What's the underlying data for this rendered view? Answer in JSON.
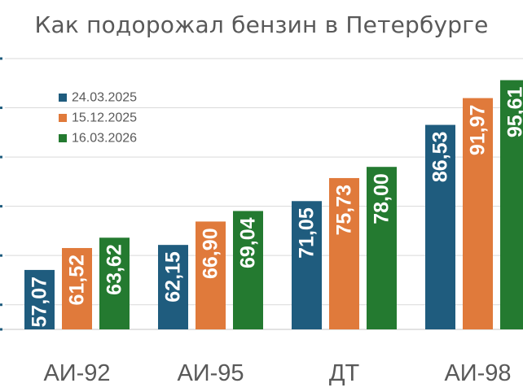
{
  "chart_data": {
    "type": "bar",
    "title": "Как подорожал бензин в Петербурге",
    "categories": [
      "АИ-92",
      "АИ-95",
      "ДТ",
      "АИ-98"
    ],
    "series": [
      {
        "name": "24.03.2025",
        "color": "#1f5c7e",
        "values": [
          57.07,
          62.15,
          71.05,
          86.53
        ],
        "labels": [
          "57,07",
          "62,15",
          "71,05",
          "86,53"
        ]
      },
      {
        "name": "15.12.2025",
        "color": "#e07a3b",
        "values": [
          61.52,
          66.9,
          75.73,
          91.97
        ],
        "labels": [
          "61,52",
          "66,90",
          "75,73",
          "91,97"
        ]
      },
      {
        "name": "16.03.2026",
        "color": "#247a30",
        "values": [
          63.62,
          69.04,
          78.0,
          95.61
        ],
        "labels": [
          "63,62",
          "69,04",
          "78,00",
          "95,61"
        ]
      }
    ],
    "ylim": [
      45,
      100
    ],
    "grid": true,
    "legend_position": "top-left"
  }
}
